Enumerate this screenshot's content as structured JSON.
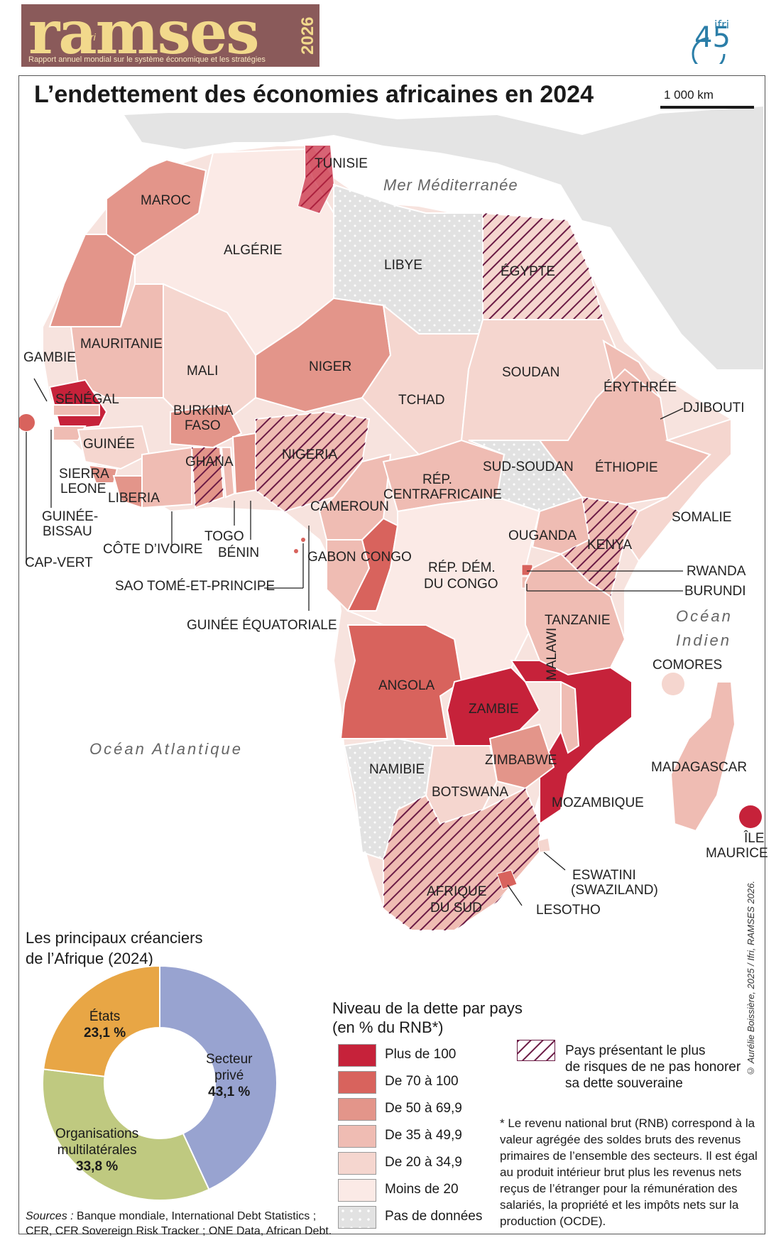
{
  "header": {
    "brand": "ramses",
    "brand_sub": "ifri",
    "year": "2026",
    "subtitle": "Rapport annuel mondial sur le système économique et les stratégies",
    "partner_logo_text": "ifri",
    "partner_logo_number": "45"
  },
  "map": {
    "title": "L’endettement des économies africaines en 2024",
    "scale_label": "1 000 km",
    "seas": {
      "mediterranean": "Mer Méditerranée",
      "atlantic": "Océan Atlantique",
      "indian_1": "Océan",
      "indian_2": "Indien"
    },
    "countries": {
      "maroc": "MAROC",
      "algerie": "ALGÉRIE",
      "tunisie": "TUNISIE",
      "libye": "LIBYE",
      "egypte": "ÉGYPTE",
      "mauritanie": "MAURITANIE",
      "mali": "MALI",
      "niger": "NIGER",
      "tchad": "TCHAD",
      "soudan": "SOUDAN",
      "erythree": "ÉRYTHRÉE",
      "djibouti": "DJIBOUTI",
      "gambie": "GAMBIE",
      "senegal": "SÉNÉGAL",
      "burkina_1": "BURKINA",
      "burkina_2": "FASO",
      "guinee": "GUINÉE",
      "nigeria": "NIGERIA",
      "sierra_1": "SIERRA",
      "sierra_2": "LEONE",
      "ghana": "GHANA",
      "liberia": "LIBERIA",
      "sud_soudan": "SUD-SOUDAN",
      "ethiopie": "ÉTHIOPIE",
      "rca_1": "RÉP.",
      "rca_2": "CENTRAFRICAINE",
      "cameroun": "CAMEROUN",
      "somalie": "SOMALIE",
      "gbissau_1": "GUINÉE-",
      "gbissau_2": "BISSAU",
      "cote_ivoire": "CÔTE D’IVOIRE",
      "togo": "TOGO",
      "benin": "BÉNIN",
      "gabon": "GABON",
      "congo": "CONGO",
      "ouganda": "OUGANDA",
      "kenya": "KENYA",
      "cap_vert": "CAP-VERT",
      "rdc_1": "RÉP. DÉM.",
      "rdc_2": "DU CONGO",
      "rwanda": "RWANDA",
      "burundi": "BURUNDI",
      "sao_tome": "SAO TOMÉ-ET-PRINCIPE",
      "tanzanie": "TANZANIE",
      "guinee_eq": "GUINÉE ÉQUATORIALE",
      "malawi": "MALAWI",
      "comores": "COMORES",
      "angola": "ANGOLA",
      "zambie": "ZAMBIE",
      "zimbabwe": "ZIMBABWE",
      "madagascar": "MADAGASCAR",
      "namibie": "NAMIBIE",
      "botswana": "BOTSWANA",
      "mozambique": "MOZAMBIQUE",
      "maurice_1": "ÎLE",
      "maurice_2": "MAURICE",
      "afsud_1": "AFRIQUE",
      "afsud_2": "DU SUD",
      "eswatini_1": "ESWATINI",
      "eswatini_2": "(SWAZILAND)",
      "lesotho": "LESOTHO"
    }
  },
  "creditors": {
    "title_1": "Les principaux créanciers",
    "title_2": "de l’Afrique (2024)"
  },
  "chart_data": {
    "type": "pie",
    "donut": true,
    "title": "Les principaux créanciers de l’Afrique (2024)",
    "slices": [
      {
        "label_1": "Secteur",
        "label_2": "privé",
        "value": 43.1,
        "display": "43,1 %",
        "color": "#98a3d0"
      },
      {
        "label_1": "Organisations",
        "label_2": "multilatérales",
        "value": 33.8,
        "display": "33,8 %",
        "color": "#bfc980"
      },
      {
        "label_1": "États",
        "label_2": "",
        "value": 23.1,
        "display": "23,1 %",
        "color": "#e8a645"
      }
    ]
  },
  "legend": {
    "title_1": "Niveau de la dette par pays",
    "title_2": "(en % du RNB*)",
    "classes": [
      {
        "label": "Plus de 100",
        "color": "#c6223a"
      },
      {
        "label": "De 70 à 100",
        "color": "#d8635d"
      },
      {
        "label": "De 50 à 69,9",
        "color": "#e3958a"
      },
      {
        "label": "De 35 à 49,9",
        "color": "#efbcb3"
      },
      {
        "label": "De 20 à 34,9",
        "color": "#f5d6cf"
      },
      {
        "label": "Moins de 20",
        "color": "#fbeae6"
      },
      {
        "label": "Pas de données",
        "color": "#e2e2e2"
      }
    ],
    "risk_1": "Pays présentant le plus",
    "risk_2": "de risques de ne pas honorer",
    "risk_3": "sa dette souveraine",
    "note": "* Le revenu national brut (RNB) correspond à la valeur agrégée des soldes bruts des revenus primaires de l’ensemble des secteurs. Il est égal au produit intérieur brut plus les revenus nets reçus de l’étranger pour la rémunération des salariés, la propriété et les impôts nets sur la production (OCDE)."
  },
  "sources": {
    "label": "Sources :",
    "line_1": "Banque mondiale, International Debt Statistics ;",
    "line_2": "CFR, CFR Sovereign Risk Tracker ; ONE Data, African Debt."
  },
  "credit": "© Aurélie Boissière, 2025 / Ifri, RAMSES 2026."
}
